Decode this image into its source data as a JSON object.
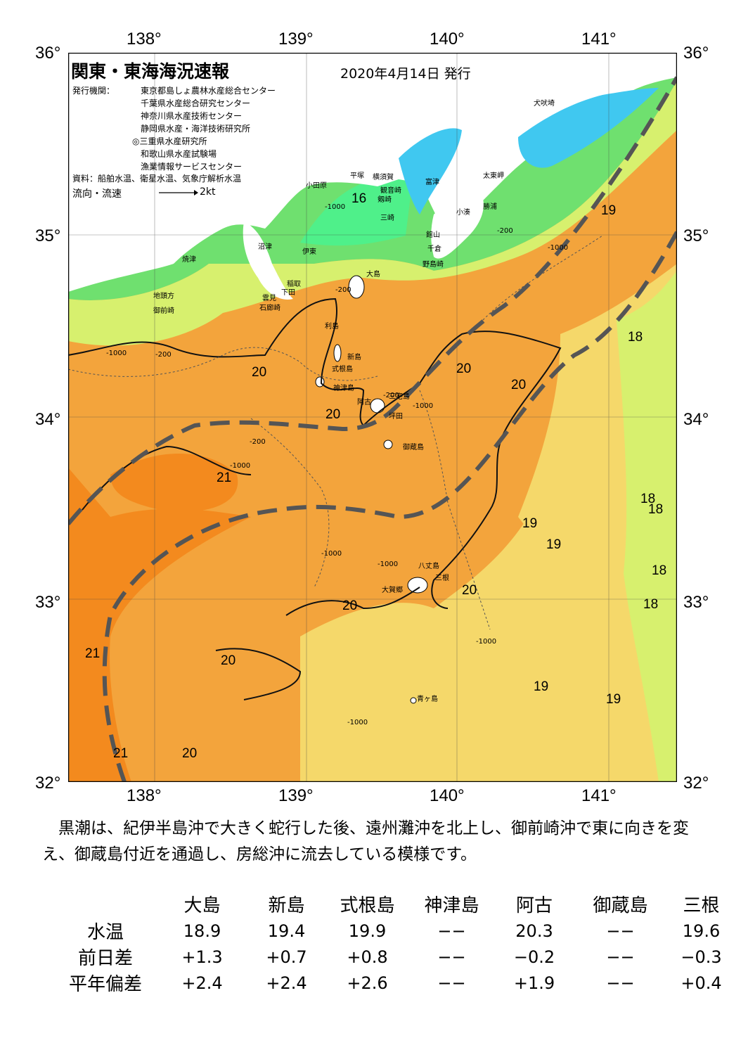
{
  "map": {
    "title": "関東・東海海況速報",
    "issue_date": "2020年4月14日 発行",
    "publisher_heading": "発行機関：",
    "publishers": [
      "東京都島しょ農林水産総合センター",
      "千葉県水産総合研究センター",
      "神奈川県水産技術センター",
      "静岡県水産・海洋技術研究所",
      "◎三重県水産研究所",
      "和歌山県水産試験場",
      "漁業情報サービスセンター"
    ],
    "source": "資料：船舶水温、衛星水温、気象庁解析水温",
    "flow_label": "流向・流速",
    "flow_speed": "2kt",
    "lon_ticks": [
      "138°",
      "139°",
      "140°",
      "141°"
    ],
    "lat_ticks": [
      "36°",
      "35°",
      "34°",
      "33°",
      "32°"
    ],
    "colors": {
      "temp_16": "#4ff08a",
      "temp_17": "#6fe06f",
      "temp_18": "#d7f06e",
      "temp_19": "#f5d86a",
      "temp_20": "#f3a43c",
      "temp_21": "#f38a1e",
      "bay_cold": "#40c8f0",
      "land": "#ffffff",
      "kuroshio_axis": "#555555"
    },
    "isotherm_labels": [
      "16",
      "19",
      "18",
      "20",
      "20",
      "20",
      "20",
      "21",
      "18",
      "18",
      "19",
      "19",
      "18",
      "18",
      "20",
      "20",
      "21",
      "20",
      "19",
      "19",
      "21",
      "20"
    ],
    "place_names": [
      "犬吠埼",
      "太東岬",
      "勝浦",
      "小湊",
      "館山",
      "千倉",
      "野島崎",
      "富津",
      "観音崎",
      "横須賀",
      "剱崎",
      "三崎",
      "平塚",
      "小田原",
      "沼津",
      "伊東",
      "焼津",
      "地頭方",
      "御前崎",
      "大島",
      "稲取",
      "下田",
      "雲見",
      "石廊崎",
      "利島",
      "新島",
      "式根島",
      "神津島",
      "三宅島",
      "阿古",
      "坪田",
      "御蔵島",
      "八丈島",
      "三根",
      "大賀郷",
      "青ヶ島"
    ],
    "depth_labels": [
      "-1000",
      "-200",
      "-1000",
      "-200",
      "-1000",
      "-200",
      "-200",
      "-1000",
      "-200",
      "-1000",
      "-1000",
      "-1000",
      "-1000",
      "-1000"
    ]
  },
  "description": "黒潮は、紀伊半島沖で大きく蛇行した後、遠州灘沖を北上し、御前崎沖で東に向きを変え、御蔵島付近を通過し、房総沖に流去している模様です。",
  "table": {
    "columns": [
      "大島",
      "新島",
      "式根島",
      "神津島",
      "阿古",
      "御蔵島",
      "三根"
    ],
    "rows": [
      {
        "label": "水温",
        "values": [
          "18.9",
          "19.4",
          "19.9",
          "−−",
          "20.3",
          "−−",
          "19.6"
        ]
      },
      {
        "label": "前日差",
        "values": [
          "+1.3",
          "+0.7",
          "+0.8",
          "−−",
          "−0.2",
          "−−",
          "−0.3"
        ]
      },
      {
        "label": "平年偏差",
        "values": [
          "+2.4",
          "+2.4",
          "+2.6",
          "−−",
          "+1.9",
          "−−",
          "+0.4"
        ]
      }
    ]
  }
}
